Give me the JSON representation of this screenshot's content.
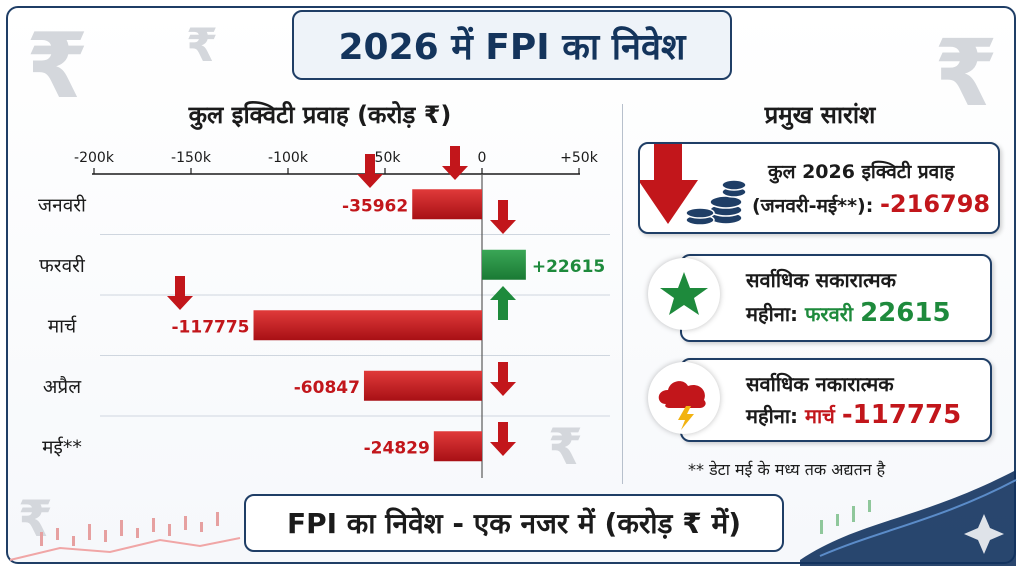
{
  "header": {
    "title": "2026 में FPI का निवेश"
  },
  "chart_data": {
    "type": "bar",
    "orientation": "horizontal",
    "title": "कुल इक्विटी प्रवाह (करोड़ ₹)",
    "categories": [
      "जनवरी",
      "फरवरी",
      "मार्च",
      "अप्रैल",
      "मई**"
    ],
    "values": [
      -35962,
      22615,
      -117775,
      -60847,
      -24829
    ],
    "value_labels": [
      "-35962",
      "+22615",
      "-117775",
      "-60847",
      "-24829"
    ],
    "tick_labels": [
      "-200k",
      "-150k",
      "-100k",
      "-50k",
      "0",
      "+50k"
    ],
    "ticks": [
      -200000,
      -150000,
      -100000,
      -50000,
      0,
      50000
    ],
    "xlim": [
      -200000,
      50000
    ],
    "grid": true,
    "colors": {
      "negative": "#c2161b",
      "positive": "#1e8a3c"
    }
  },
  "summary": {
    "title": "प्रमुख सारांश",
    "total_line1": "कुल 2026 इक्विटी प्रवाह",
    "total_line2_label": "(जनवरी-मई**):",
    "total_value": "-216798",
    "positive_line1": "सर्वाधिक सकारात्मक",
    "positive_line2_label": "महीना:",
    "positive_month": "फरवरी",
    "positive_value": "22615",
    "negative_line1": "सर्वाधिक नकारात्मक",
    "negative_line2_label": "महीना:",
    "negative_month": "मार्च",
    "negative_value": "-117775"
  },
  "note": "** डेटा मई के मध्य तक अद्यतन है",
  "footer": {
    "title": "FPI का निवेश - एक नजर में (करोड़ ₹ में)"
  },
  "icons": {
    "total": "down-arrow-coins-icon",
    "positive": "star-icon",
    "negative": "storm-cloud-icon",
    "background": "rupee-icon"
  }
}
